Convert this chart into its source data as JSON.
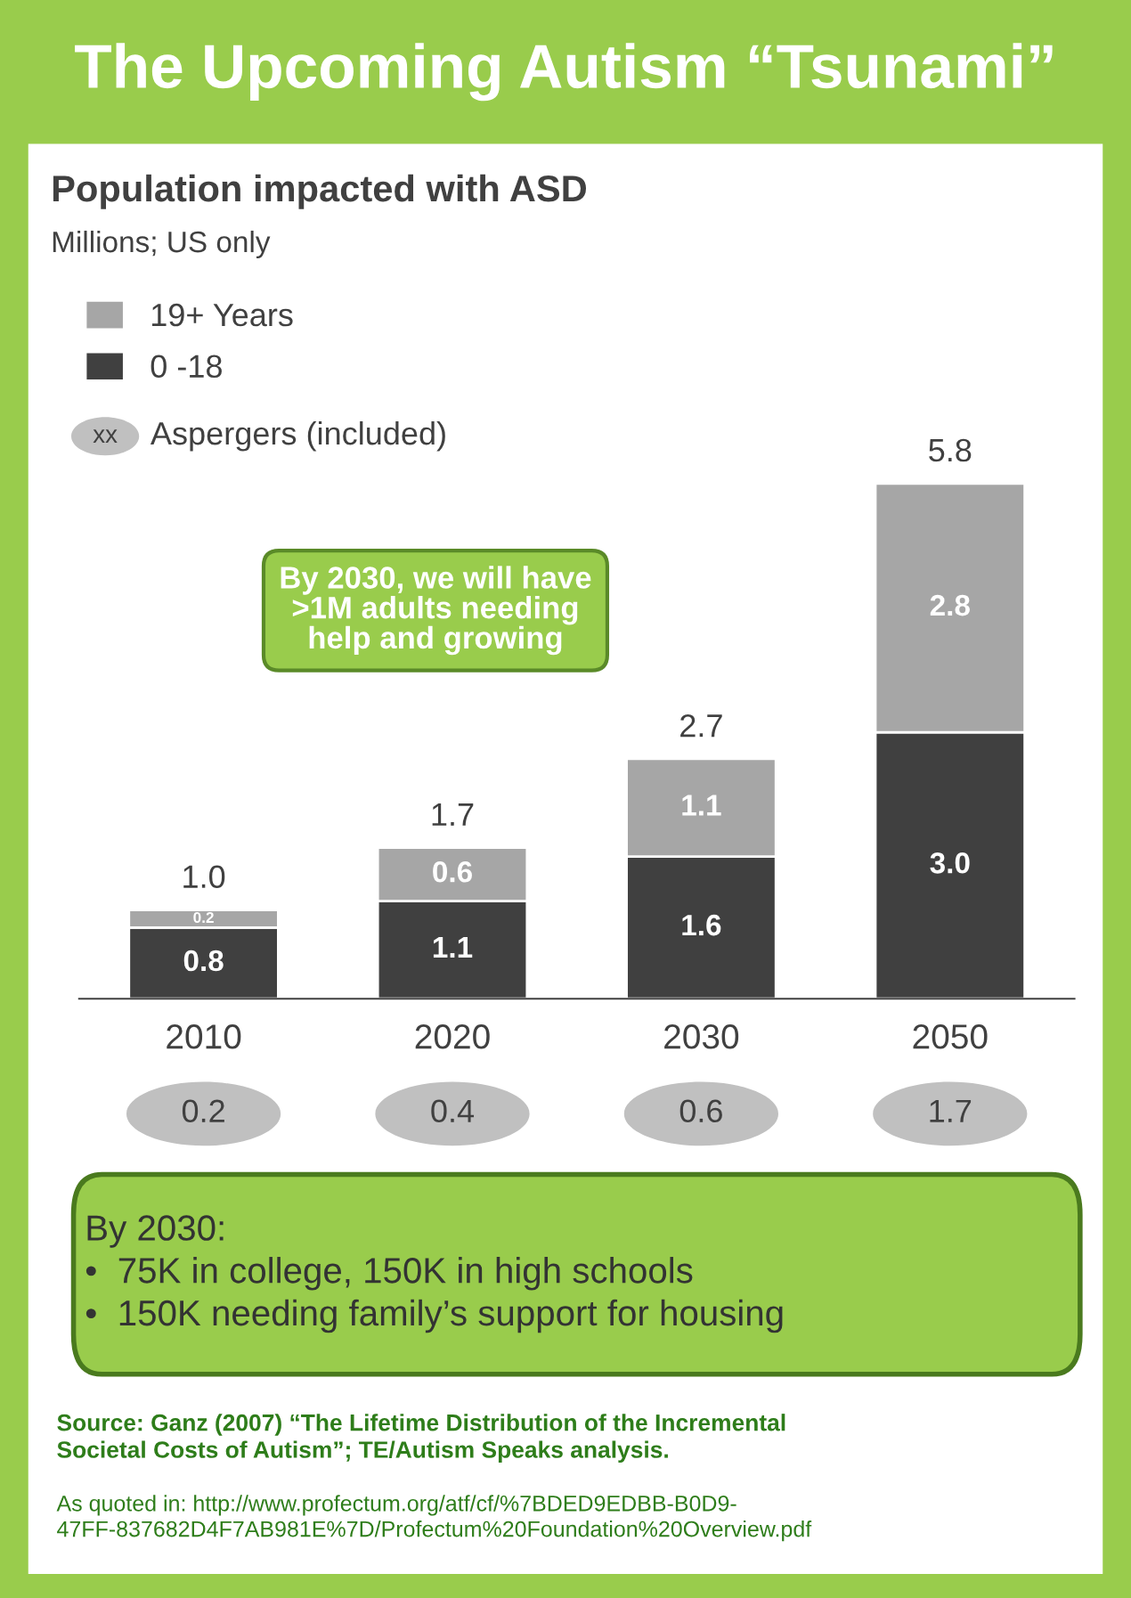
{
  "chart_data": {
    "type": "bar",
    "stacked": true,
    "title": "The Upcoming Autism “Tsunami”",
    "subtitle": "Population impacted with ASD",
    "categories": [
      "2010",
      "2020",
      "2030",
      "2050"
    ],
    "series": [
      {
        "name": "0 -18",
        "color": "#404040",
        "values": [
          0.8,
          1.1,
          1.6,
          3.0
        ],
        "value_labels": [
          "0.8",
          "1.1",
          "1.6",
          "3.0"
        ]
      },
      {
        "name": "19+ Years",
        "color": "#a6a6a6",
        "values": [
          0.2,
          0.6,
          1.1,
          2.8
        ],
        "value_labels": [
          "0.2",
          "0.6",
          "1.1",
          "2.8"
        ]
      }
    ],
    "totals": [
      "1.0",
      "1.7",
      "2.7",
      "5.8"
    ],
    "legend": "top left",
    "grid": false,
    "annotations": [
      "Millions; US only",
      "Aspergers (included)",
      "0.2",
      "0.4",
      "0.6",
      "1.7",
      "By 2030, we will have\n>1M adults needing\nhelp and growing",
      "By 2030:\n•  75K in college, 150K in high schools\n•  150K needing family’s support for housing",
      "Source: Ganz (2007) “The Lifetime Distribution of the Incremental\nSocietal Costs of Autism”; TE/Autism Speaks analysis.",
      "As quoted in: http://www.profectum.org/atf/cf/%7BDED9EDBB-B0D9-\n47FF-837682D4F7AB981E%7D/Profectum%20Foundation%20Overview.pdf",
      "xx"
    ]
  }
}
